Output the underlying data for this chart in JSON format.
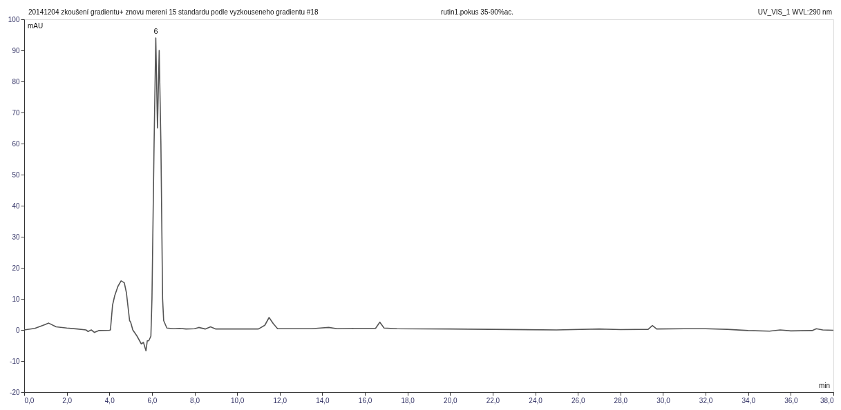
{
  "chart_data": {
    "type": "line",
    "title": "20141204 zkoušení gradientu+ znovu mereni 15 standardu podle vyzkouseneho gradientu #18",
    "subtitle": "rutin1.pokus 35-90%ac.",
    "annotations": [
      "UV_VIS_1 WVL:290 nm",
      {
        "text": "6",
        "x": 6.18,
        "y": 94
      }
    ],
    "xlabel": "min",
    "ylabel": "mAU",
    "x": [
      0.0,
      0.5,
      1.0,
      1.15,
      1.5,
      2.0,
      2.5,
      2.9,
      3.0,
      3.15,
      3.3,
      3.5,
      4.0,
      4.05,
      4.15,
      4.25,
      4.4,
      4.55,
      4.7,
      4.8,
      4.95,
      5.0,
      5.1,
      5.3,
      5.5,
      5.6,
      5.72,
      5.78,
      5.85,
      5.95,
      6.0,
      6.1,
      6.18,
      6.26,
      6.34,
      6.42,
      6.5,
      6.55,
      6.7,
      7.0,
      7.3,
      7.6,
      8.0,
      8.2,
      8.5,
      8.75,
      9.0,
      10.0,
      11.0,
      11.3,
      11.5,
      11.7,
      11.9,
      12.5,
      13.5,
      13.9,
      14.3,
      14.7,
      15.5,
      16.5,
      16.7,
      16.9,
      17.5,
      20.0,
      25.0,
      27.0,
      28.0,
      29.3,
      29.5,
      29.7,
      31.0,
      32.0,
      33.0,
      34.0,
      35.0,
      35.5,
      36.0,
      37.0,
      37.2,
      37.5,
      38.0
    ],
    "series": [
      {
        "color": "#555555",
        "values": [
          0,
          0.5,
          1.8,
          2.2,
          1.0,
          0.6,
          0.3,
          0,
          -0.5,
          0,
          -0.8,
          -0.2,
          -0.1,
          0,
          8,
          11,
          14,
          15.8,
          15.2,
          12,
          3,
          2.5,
          0,
          -2,
          -4.5,
          -4,
          -6.7,
          -3.5,
          -3.5,
          -2,
          10,
          60,
          94,
          65,
          90,
          60,
          10,
          3,
          0.6,
          0.4,
          0.5,
          0.3,
          0.4,
          0.8,
          0.3,
          1.0,
          0.3,
          0.3,
          0.3,
          1.5,
          4.0,
          2.0,
          0.4,
          0.4,
          0.4,
          0.6,
          0.8,
          0.4,
          0.5,
          0.5,
          2.5,
          0.6,
          0.4,
          0.3,
          0,
          0.3,
          0.1,
          0.2,
          1.4,
          0.3,
          0.4,
          0.4,
          0.2,
          -0.2,
          -0.4,
          0,
          -0.3,
          -0.2,
          0.4,
          0,
          -0.1
        ]
      }
    ],
    "xlim": [
      0,
      38
    ],
    "ylim": [
      -20,
      100
    ],
    "xticks": [
      {
        "value": 0,
        "label": "0,0"
      },
      {
        "value": 2,
        "label": "2,0"
      },
      {
        "value": 4,
        "label": "4,0"
      },
      {
        "value": 6,
        "label": "6,0"
      },
      {
        "value": 8,
        "label": "8,0"
      },
      {
        "value": 10,
        "label": "10,0"
      },
      {
        "value": 12,
        "label": "12,0"
      },
      {
        "value": 14,
        "label": "14,0"
      },
      {
        "value": 16,
        "label": "16,0"
      },
      {
        "value": 18,
        "label": "18,0"
      },
      {
        "value": 20,
        "label": "20,0"
      },
      {
        "value": 22,
        "label": "22,0"
      },
      {
        "value": 24,
        "label": "24,0"
      },
      {
        "value": 26,
        "label": "26,0"
      },
      {
        "value": 28,
        "label": "28,0"
      },
      {
        "value": 30,
        "label": "30,0"
      },
      {
        "value": 32,
        "label": "32,0"
      },
      {
        "value": 34,
        "label": "34,0"
      },
      {
        "value": 36,
        "label": "36,0"
      },
      {
        "value": 38,
        "label": "38,0"
      }
    ],
    "yticks": [
      -20,
      -10,
      0,
      10,
      20,
      30,
      40,
      50,
      60,
      70,
      80,
      90,
      100
    ],
    "grid": false,
    "marker": "none",
    "line_style": "solid"
  }
}
